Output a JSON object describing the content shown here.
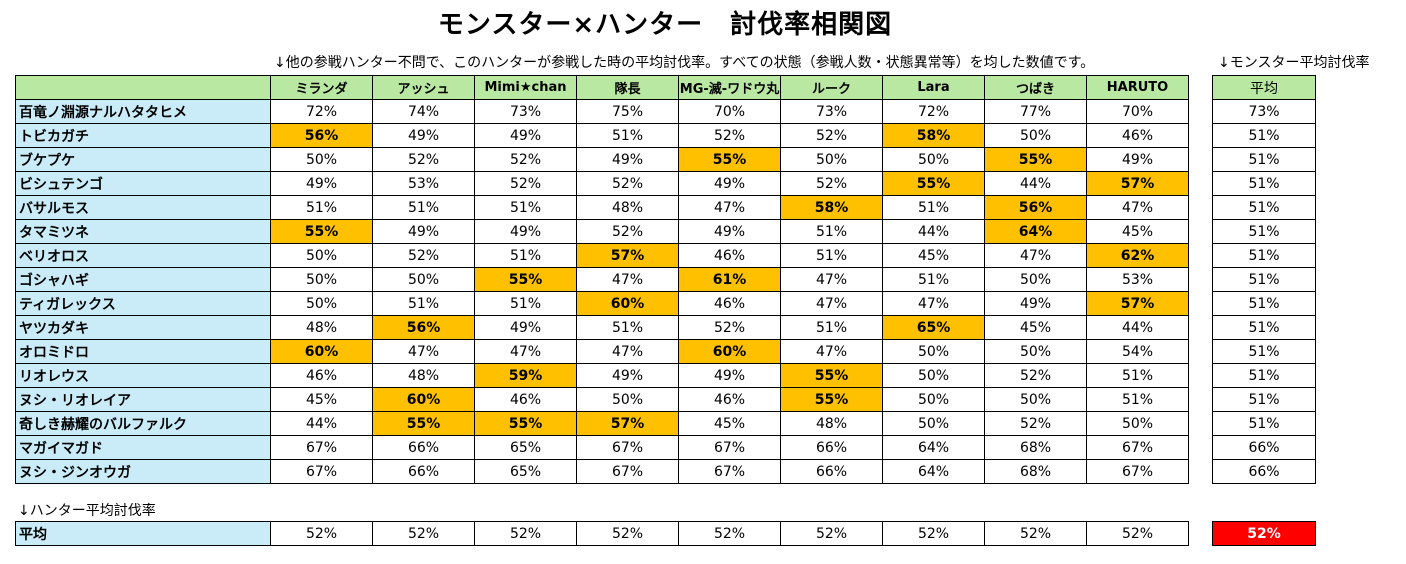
{
  "title": "モンスター×ハンター　討伐率相関図",
  "note_desc": "↓他の参戦ハンター不問で、このハンターが参戦した時の平均討伐率。すべての状態（参戦人数・状態異常等）を均した数値です。",
  "note_monster_avg": "↓モンスター平均討伐率",
  "note_hunter_avg": "↓ハンター平均討伐率",
  "avg_header": "平均",
  "hunters": [
    "ミランダ",
    "アッシュ",
    "Mimi★chan",
    "隊長",
    "MG-滅-ワドウ丸",
    "ルーク",
    "Lara",
    "つばき",
    "HARUTO"
  ],
  "rows": [
    {
      "monster": "百竜ノ淵源ナルハタタヒメ",
      "values": [
        "72%",
        "74%",
        "73%",
        "75%",
        "70%",
        "73%",
        "72%",
        "77%",
        "70%"
      ],
      "highlight": [],
      "avg": "73%"
    },
    {
      "monster": "トビカガチ",
      "values": [
        "56%",
        "49%",
        "49%",
        "51%",
        "52%",
        "52%",
        "58%",
        "50%",
        "46%"
      ],
      "highlight": [
        0,
        6
      ],
      "avg": "51%"
    },
    {
      "monster": "ブケプケ",
      "values": [
        "50%",
        "52%",
        "52%",
        "49%",
        "55%",
        "50%",
        "50%",
        "55%",
        "49%"
      ],
      "highlight": [
        4,
        7
      ],
      "avg": "51%"
    },
    {
      "monster": "ビシュテンゴ",
      "values": [
        "49%",
        "53%",
        "52%",
        "52%",
        "49%",
        "52%",
        "55%",
        "44%",
        "57%"
      ],
      "highlight": [
        6,
        8
      ],
      "avg": "51%"
    },
    {
      "monster": "バサルモス",
      "values": [
        "51%",
        "51%",
        "51%",
        "48%",
        "47%",
        "58%",
        "51%",
        "56%",
        "47%"
      ],
      "highlight": [
        5,
        7
      ],
      "avg": "51%"
    },
    {
      "monster": "タマミツネ",
      "values": [
        "55%",
        "49%",
        "49%",
        "52%",
        "49%",
        "51%",
        "44%",
        "64%",
        "45%"
      ],
      "highlight": [
        0,
        7
      ],
      "avg": "51%"
    },
    {
      "monster": "ベリオロス",
      "values": [
        "50%",
        "52%",
        "51%",
        "57%",
        "46%",
        "51%",
        "45%",
        "47%",
        "62%"
      ],
      "highlight": [
        3,
        8
      ],
      "avg": "51%"
    },
    {
      "monster": "ゴシャハギ",
      "values": [
        "50%",
        "50%",
        "55%",
        "47%",
        "61%",
        "47%",
        "51%",
        "50%",
        "53%"
      ],
      "highlight": [
        2,
        4
      ],
      "avg": "51%"
    },
    {
      "monster": "ティガレックス",
      "values": [
        "50%",
        "51%",
        "51%",
        "60%",
        "46%",
        "47%",
        "47%",
        "49%",
        "57%"
      ],
      "highlight": [
        3,
        8
      ],
      "avg": "51%"
    },
    {
      "monster": "ヤツカダキ",
      "values": [
        "48%",
        "56%",
        "49%",
        "51%",
        "52%",
        "51%",
        "65%",
        "45%",
        "44%"
      ],
      "highlight": [
        1,
        6
      ],
      "avg": "51%"
    },
    {
      "monster": "オロミドロ",
      "values": [
        "60%",
        "47%",
        "47%",
        "47%",
        "60%",
        "47%",
        "50%",
        "50%",
        "54%"
      ],
      "highlight": [
        0,
        4
      ],
      "avg": "51%"
    },
    {
      "monster": "リオレウス",
      "values": [
        "46%",
        "48%",
        "59%",
        "49%",
        "49%",
        "55%",
        "50%",
        "52%",
        "51%"
      ],
      "highlight": [
        2,
        5
      ],
      "avg": "51%"
    },
    {
      "monster": "ヌシ・リオレイア",
      "values": [
        "45%",
        "60%",
        "46%",
        "50%",
        "46%",
        "55%",
        "50%",
        "50%",
        "51%"
      ],
      "highlight": [
        1,
        5
      ],
      "avg": "51%"
    },
    {
      "monster": "奇しき赫耀のバルファルク",
      "values": [
        "44%",
        "55%",
        "55%",
        "57%",
        "45%",
        "48%",
        "50%",
        "52%",
        "50%"
      ],
      "highlight": [
        1,
        2,
        3
      ],
      "avg": "51%"
    },
    {
      "monster": "マガイマガド",
      "values": [
        "67%",
        "66%",
        "65%",
        "67%",
        "67%",
        "66%",
        "64%",
        "68%",
        "67%"
      ],
      "highlight": [],
      "avg": "66%"
    },
    {
      "monster": "ヌシ・ジンオウガ",
      "values": [
        "67%",
        "66%",
        "65%",
        "67%",
        "67%",
        "66%",
        "64%",
        "68%",
        "67%"
      ],
      "highlight": [],
      "avg": "66%"
    }
  ],
  "bottom": {
    "label": "平均",
    "values": [
      "52%",
      "52%",
      "52%",
      "52%",
      "52%",
      "52%",
      "52%",
      "52%",
      "52%"
    ],
    "overall": "52%"
  },
  "colors": {
    "header_green": "#b9e8a2",
    "monster_blue": "#c9ecf8",
    "highlight_orange": "#ffc000",
    "overall_red": "#ff0000"
  }
}
